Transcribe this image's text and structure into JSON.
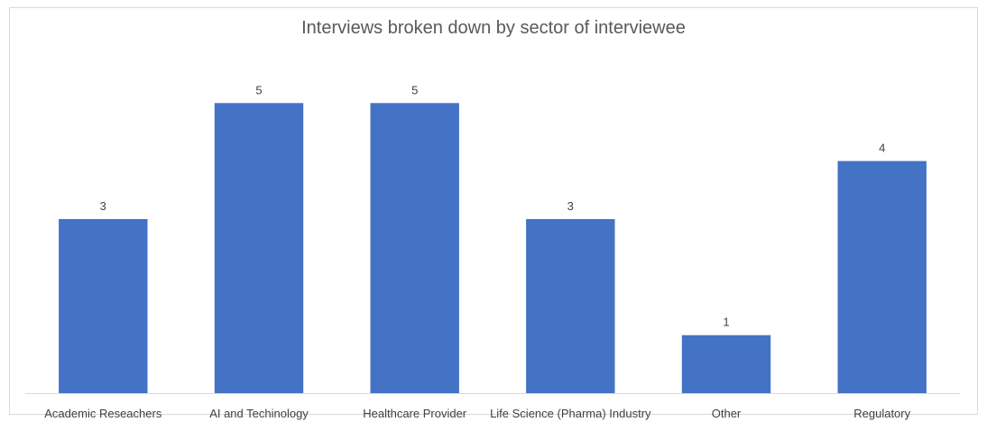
{
  "chart_data": {
    "type": "bar",
    "title": "Interviews broken down by sector of interviewee",
    "categories": [
      "Academic Reseachers",
      "AI and Techinology",
      "Healthcare Provider",
      "Life Science (Pharma) Industry",
      "Other",
      "Regulatory"
    ],
    "values": [
      3,
      5,
      5,
      3,
      1,
      4
    ],
    "xlabel": "",
    "ylabel": "",
    "ylim": [
      0,
      5.3
    ],
    "grid": false,
    "legend": "none",
    "data_labels": true,
    "colors": {
      "bar": "#4472c4",
      "axis": "#d9d9d9",
      "text": "#404040",
      "title": "#595959"
    }
  }
}
